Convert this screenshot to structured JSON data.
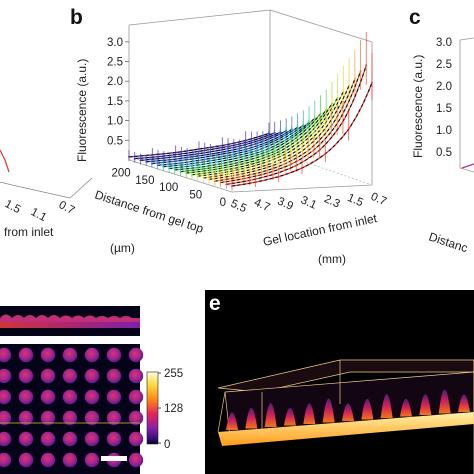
{
  "panels": {
    "a": {
      "letter": "",
      "zticks": [],
      "xticks": [
        "1.5",
        "1.1",
        "0.7"
      ],
      "xlabel_fragment": "from inlet"
    },
    "b": {
      "letter": "b"
    },
    "c": {
      "letter": "c",
      "ylabel": "Fluorescence (a.u.)",
      "xlabel_fragment": "Distanc"
    },
    "d": {
      "letter": ""
    },
    "e": {
      "letter": "e"
    }
  },
  "colorbar": {
    "ticks": [
      "255",
      "128",
      "0"
    ],
    "max": 255,
    "min": 0
  },
  "colors": {
    "fit_line": "#111111",
    "measure_line": "#e8352e",
    "dark_bg": "#000000",
    "bottom_slab": "#ffd24a",
    "box_edges": "#f2c98b"
  },
  "chart_data": {
    "type": "line",
    "projection": "3d",
    "title": "",
    "zlabel": "Fluorescence (a.u.)",
    "ylabel": "Distance from gel top (µm)",
    "xlabel": "Gel location from inlet (mm)",
    "zlim": [
      0,
      3.3
    ],
    "zticks": [
      "0.5",
      "1.0",
      "1.5",
      "2.0",
      "2.5",
      "3.0"
    ],
    "yticks": [
      "200",
      "150",
      "100",
      "50",
      "0"
    ],
    "xticks": [
      "5.5",
      "4.7",
      "3.9",
      "3.1",
      "2.3",
      "1.5",
      "0.7"
    ],
    "x": [
      5.5,
      4.7,
      3.9,
      3.1,
      2.3,
      1.5,
      0.7
    ],
    "depths": [
      0,
      12,
      24,
      36,
      48,
      60,
      72,
      84,
      96,
      108,
      120,
      132,
      144,
      156,
      168,
      180,
      192,
      204,
      216
    ],
    "series": [
      {
        "depth": 0,
        "values": [
          0.15,
          0.22,
          0.33,
          0.52,
          0.85,
          1.45,
          2.6
        ]
      },
      {
        "depth": 12,
        "values": [
          0.15,
          0.22,
          0.34,
          0.54,
          0.9,
          1.6,
          3.0
        ]
      },
      {
        "depth": 24,
        "values": [
          0.15,
          0.22,
          0.33,
          0.52,
          0.86,
          1.5,
          2.8
        ]
      },
      {
        "depth": 36,
        "values": [
          0.14,
          0.21,
          0.31,
          0.49,
          0.8,
          1.4,
          2.55
        ]
      },
      {
        "depth": 48,
        "values": [
          0.14,
          0.2,
          0.3,
          0.46,
          0.75,
          1.3,
          2.35
        ]
      },
      {
        "depth": 60,
        "values": [
          0.13,
          0.19,
          0.28,
          0.43,
          0.7,
          1.2,
          2.15
        ]
      },
      {
        "depth": 72,
        "values": [
          0.13,
          0.18,
          0.27,
          0.41,
          0.65,
          1.1,
          1.95
        ]
      },
      {
        "depth": 84,
        "values": [
          0.12,
          0.17,
          0.25,
          0.38,
          0.6,
          1.0,
          1.75
        ]
      },
      {
        "depth": 96,
        "values": [
          0.12,
          0.16,
          0.24,
          0.35,
          0.55,
          0.92,
          1.55
        ]
      },
      {
        "depth": 108,
        "values": [
          0.11,
          0.15,
          0.22,
          0.33,
          0.5,
          0.84,
          1.4
        ]
      },
      {
        "depth": 120,
        "values": [
          0.11,
          0.14,
          0.21,
          0.31,
          0.46,
          0.76,
          1.25
        ]
      },
      {
        "depth": 132,
        "values": [
          0.1,
          0.14,
          0.2,
          0.29,
          0.42,
          0.68,
          1.1
        ]
      },
      {
        "depth": 144,
        "values": [
          0.1,
          0.13,
          0.19,
          0.27,
          0.39,
          0.62,
          0.98
        ]
      },
      {
        "depth": 156,
        "values": [
          0.09,
          0.12,
          0.18,
          0.25,
          0.36,
          0.56,
          0.88
        ]
      },
      {
        "depth": 168,
        "values": [
          0.09,
          0.12,
          0.17,
          0.24,
          0.33,
          0.5,
          0.78
        ]
      },
      {
        "depth": 180,
        "values": [
          0.09,
          0.11,
          0.16,
          0.22,
          0.31,
          0.46,
          0.7
        ]
      },
      {
        "depth": 192,
        "values": [
          0.08,
          0.11,
          0.15,
          0.21,
          0.29,
          0.42,
          0.62
        ]
      },
      {
        "depth": 204,
        "values": [
          0.08,
          0.1,
          0.14,
          0.2,
          0.27,
          0.38,
          0.56
        ]
      },
      {
        "depth": 216,
        "values": [
          0.08,
          0.1,
          0.13,
          0.19,
          0.25,
          0.35,
          0.5
        ]
      }
    ],
    "series_colors": [
      "#e8352e",
      "#f5432c",
      "#f56b2d",
      "#f7962e",
      "#f5c22f",
      "#e3dc2f",
      "#c2e12f",
      "#8fdc33",
      "#5fd33b",
      "#3fcc52",
      "#33c48b",
      "#2fbbc1",
      "#2fa6d9",
      "#2f88dd",
      "#2f6adb",
      "#3450cf",
      "#3c3fc0",
      "#4a33ab",
      "#55289a"
    ],
    "grid": false,
    "legend": "none"
  }
}
